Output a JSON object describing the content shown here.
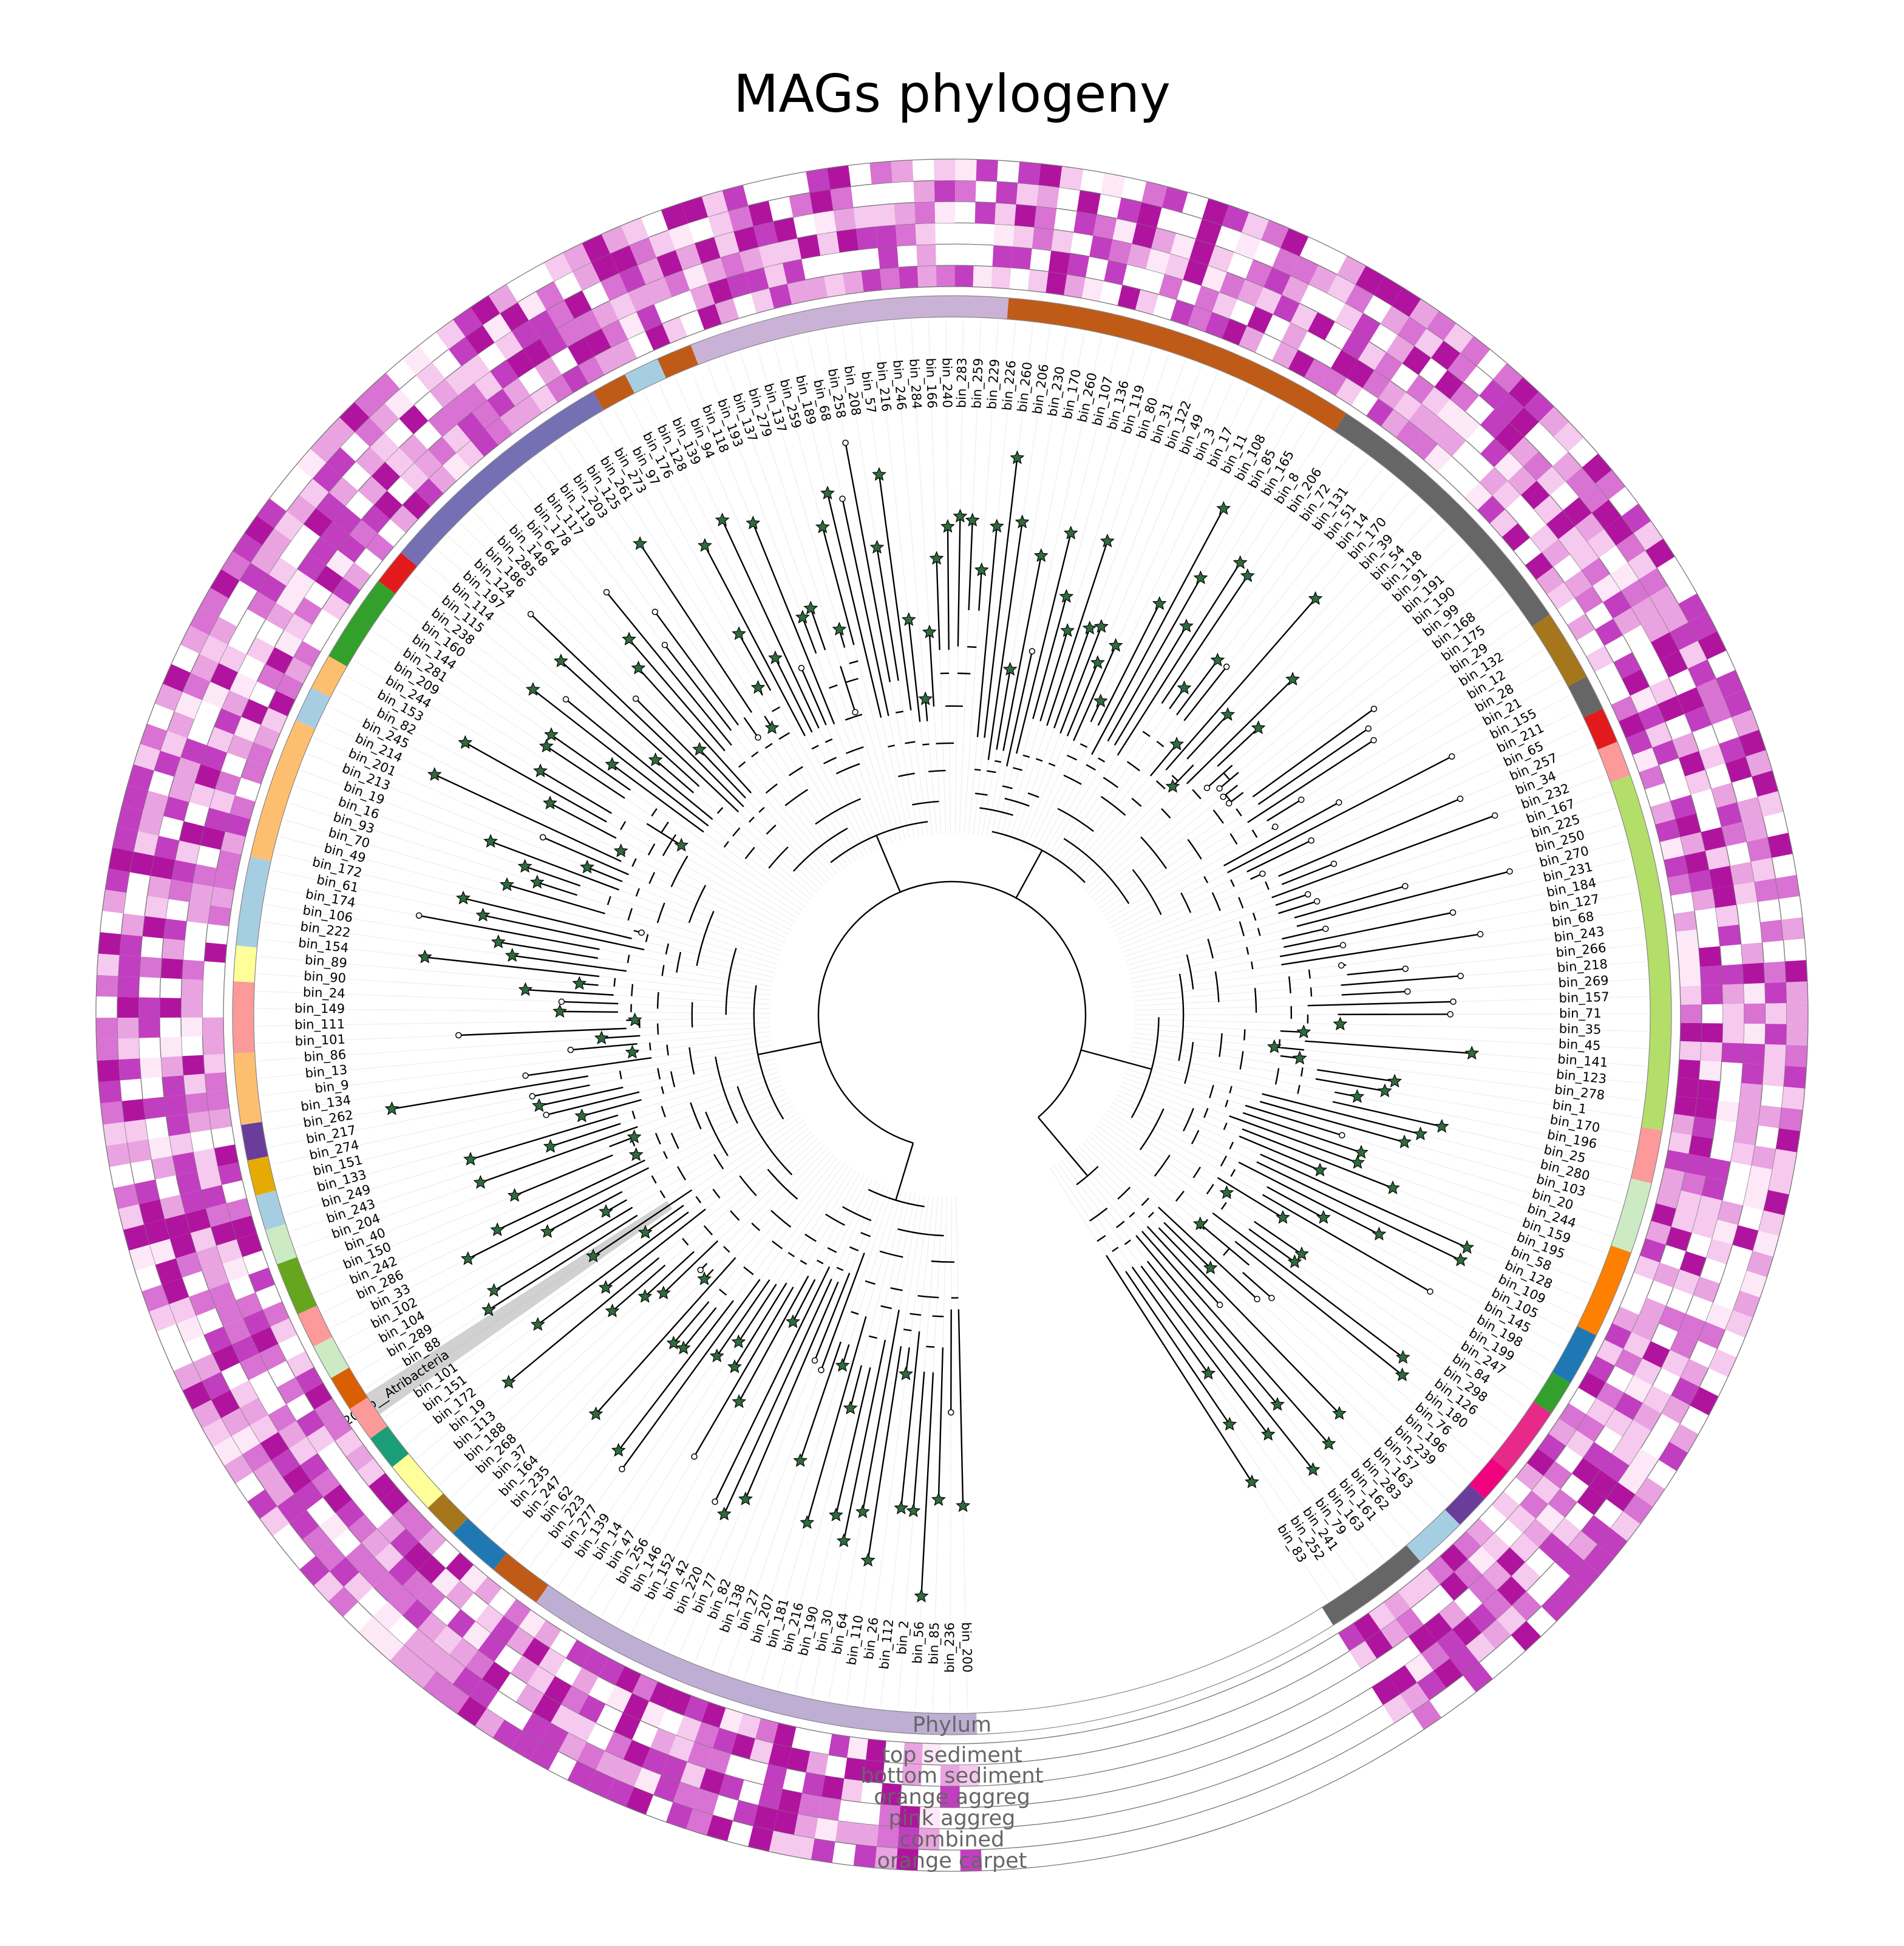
{
  "title": "MAGs phylogeny",
  "ring_labels": [
    "Phylum",
    "top sediment",
    "bottom sediment",
    "orange aggreg",
    "pink aggreg",
    "combined",
    "orange carpet"
  ],
  "colors": {
    "heat_low": "#fbe3f6",
    "heat_mid": "#dd8ad8",
    "heat_high": "#bb1dbb",
    "branch": "#000000",
    "star_fill": "#2f6b3b",
    "highlight": "#999999"
  },
  "highlighted_leaf": "bin_202|p__Atribacteria",
  "leaves": [
    "bin_200",
    "bin_236",
    "bin_85",
    "bin_56",
    "bin_2",
    "bin_112",
    "bin_26",
    "bin_110",
    "bin_64",
    "bin_30",
    "bin_190",
    "bin_216",
    "bin_181",
    "bin_207",
    "bin_27",
    "bin_138",
    "bin_82",
    "bin_77",
    "bin_220",
    "bin_42",
    "bin_152",
    "bin_146",
    "bin_256",
    "bin_47",
    "bin_14",
    "bin_139",
    "bin_277",
    "bin_223",
    "bin_62",
    "bin_247",
    "bin_235",
    "bin_164",
    "bin_37",
    "bin_268",
    "bin_188",
    "bin_113",
    "bin_19",
    "bin_172",
    "bin_151",
    "bin_101",
    "bin_202|p__Atribacteria",
    "bin_88",
    "bin_289",
    "bin_104",
    "bin_102",
    "bin_33",
    "bin_286",
    "bin_242",
    "bin_150",
    "bin_40",
    "bin_204",
    "bin_243",
    "bin_249",
    "bin_133",
    "bin_151",
    "bin_274",
    "bin_217",
    "bin_262",
    "bin_134",
    "bin_9",
    "bin_13",
    "bin_86",
    "bin_101",
    "bin_111",
    "bin_149",
    "bin_24",
    "bin_90",
    "bin_89",
    "bin_154",
    "bin_222",
    "bin_106",
    "bin_174",
    "bin_61",
    "bin_172",
    "bin_49",
    "bin_70",
    "bin_93",
    "bin_16",
    "bin_19",
    "bin_213",
    "bin_201",
    "bin_214",
    "bin_245",
    "bin_82",
    "bin_153",
    "bin_244",
    "bin_209",
    "bin_281",
    "bin_144",
    "bin_160",
    "bin_238",
    "bin_115",
    "bin_114",
    "bin_197",
    "bin_124",
    "bin_186",
    "bin_285",
    "bin_148",
    "bin_64",
    "bin_178",
    "bin_117",
    "bin_119",
    "bin_203",
    "bin_125",
    "bin_261",
    "bin_273",
    "bin_97",
    "bin_176",
    "bin_128",
    "bin_139",
    "bin_94",
    "bin_118",
    "bin_193",
    "bin_137",
    "bin_279",
    "bin_137",
    "bin_259",
    "bin_189",
    "bin_68",
    "bin_258",
    "bin_208",
    "bin_57",
    "bin_216",
    "bin_246",
    "bin_284",
    "bin_166",
    "bin_240",
    "bin_283",
    "bin_259",
    "bin_229",
    "bin_226",
    "bin_260",
    "bin_206",
    "bin_230",
    "bin_170",
    "bin_260",
    "bin_107",
    "bin_136",
    "bin_119",
    "bin_80",
    "bin_31",
    "bin_122",
    "bin_49",
    "bin_3",
    "bin_17",
    "bin_11",
    "bin_108",
    "bin_85",
    "bin_165",
    "bin_8",
    "bin_206",
    "bin_72",
    "bin_131",
    "bin_51",
    "bin_14",
    "bin_170",
    "bin_39",
    "bin_54",
    "bin_118",
    "bin_91",
    "bin_191",
    "bin_190",
    "bin_99",
    "bin_168",
    "bin_175",
    "bin_29",
    "bin_132",
    "bin_12",
    "bin_28",
    "bin_21",
    "bin_155",
    "bin_211",
    "bin_65",
    "bin_257",
    "bin_34",
    "bin_232",
    "bin_167",
    "bin_225",
    "bin_250",
    "bin_270",
    "bin_231",
    "bin_184",
    "bin_127",
    "bin_68",
    "bin_243",
    "bin_266",
    "bin_218",
    "bin_269",
    "bin_157",
    "bin_71",
    "bin_35",
    "bin_45",
    "bin_141",
    "bin_123",
    "bin_278",
    "bin_1",
    "bin_170",
    "bin_196",
    "bin_25",
    "bin_280",
    "bin_103",
    "bin_20",
    "bin_244",
    "bin_159",
    "bin_195",
    "bin_58",
    "bin_128",
    "bin_109",
    "bin_105",
    "bin_145",
    "bin_198",
    "bin_199",
    "bin_247",
    "bin_84",
    "bin_298",
    "bin_126",
    "bin_180",
    "bin_76",
    "bin_196",
    "bin_239",
    "bin_57",
    "bin_163",
    "bin_283",
    "bin_162",
    "bin_161",
    "bin_163",
    "bin_79",
    "bin_241",
    "bin_252",
    "bin_83"
  ]
}
